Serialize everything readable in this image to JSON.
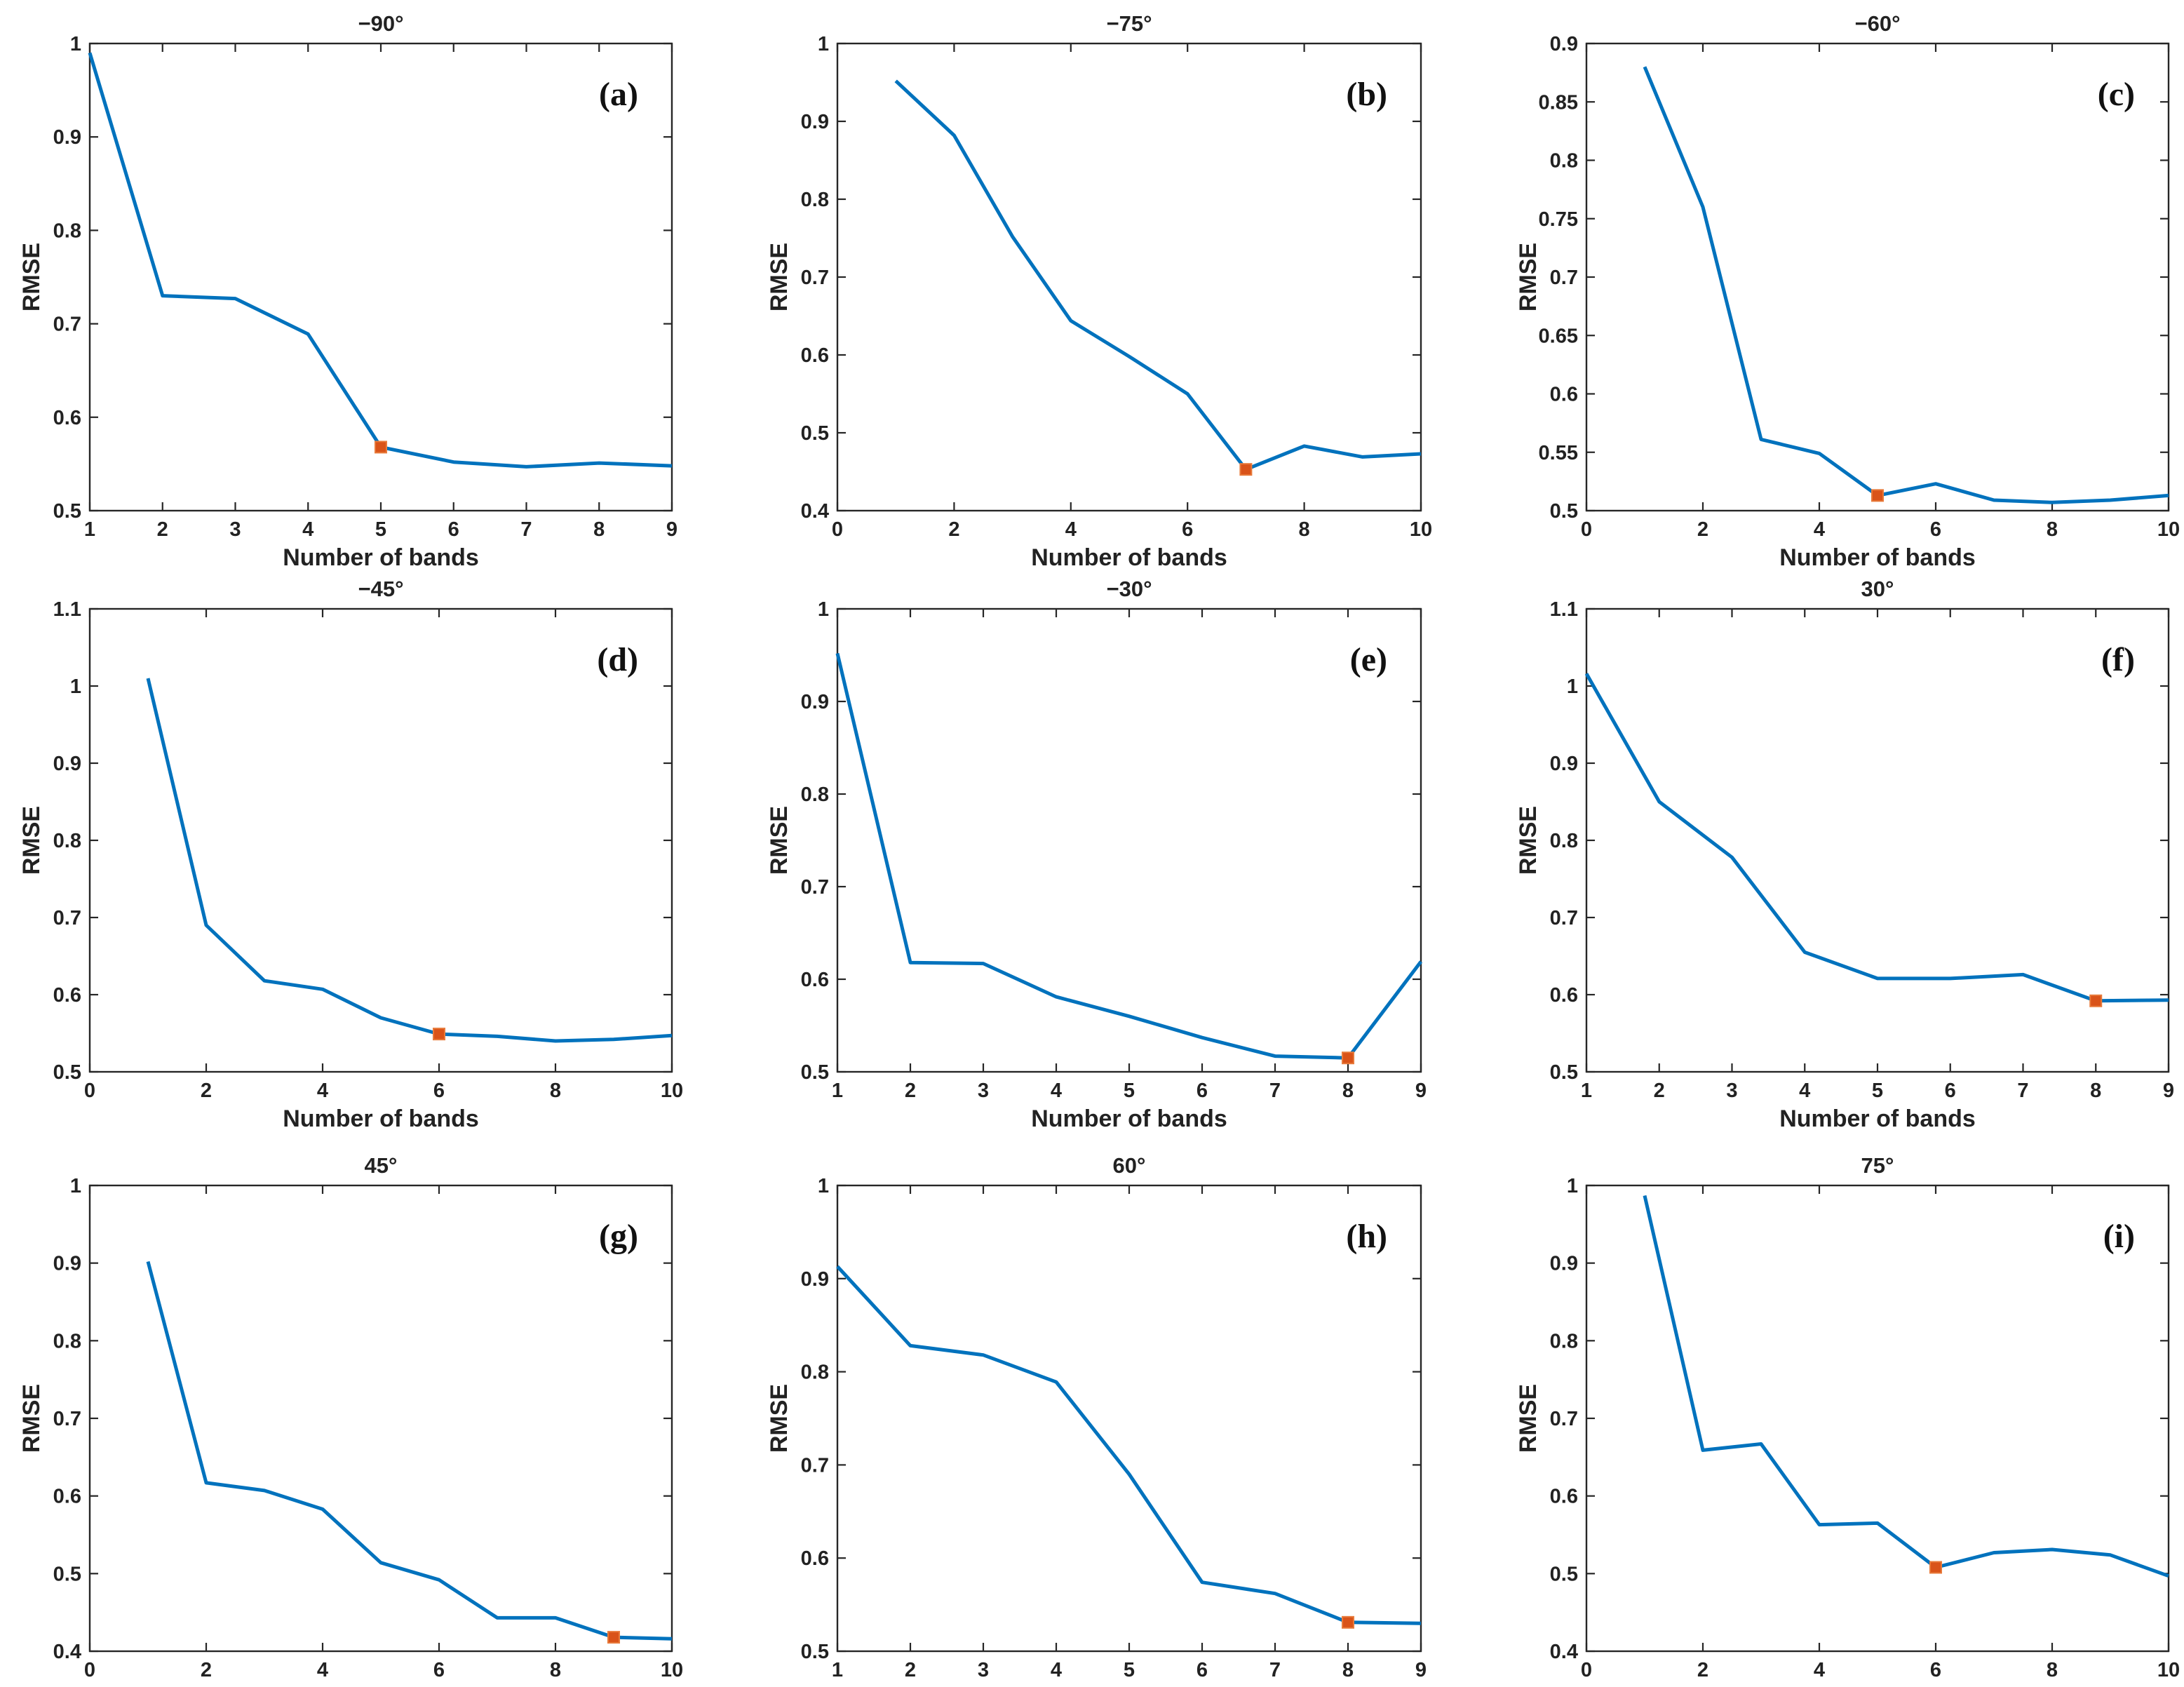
{
  "colors": {
    "line": "#0072bd",
    "marker": "#d95319",
    "axis": "#262626"
  },
  "chart_data": [
    {
      "type": "line",
      "title": "−90°",
      "panel_label": "(a)",
      "xlabel": "Number of bands",
      "ylabel": "RMSE",
      "xlim": [
        1,
        9
      ],
      "ylim": [
        0.5,
        1
      ],
      "xticks": [
        "1",
        "2",
        "3",
        "4",
        "5",
        "6",
        "7",
        "8",
        "9"
      ],
      "yticks": [
        "0.5",
        "0.6",
        "0.7",
        "0.8",
        "0.9",
        "1"
      ],
      "series": [
        {
          "x": [
            1,
            2,
            3,
            4,
            5,
            6,
            7,
            8,
            9
          ],
          "values": [
            0.99,
            0.73,
            0.727,
            0.689,
            0.568,
            0.552,
            0.547,
            0.551,
            0.548
          ]
        }
      ],
      "highlight": {
        "x": 5,
        "y": 0.568
      }
    },
    {
      "type": "line",
      "title": "−75°",
      "panel_label": "(b)",
      "xlabel": "Number of bands",
      "ylabel": "RMSE",
      "xlim": [
        0,
        10
      ],
      "ylim": [
        0.4,
        1
      ],
      "xticks": [
        "0",
        "2",
        "4",
        "6",
        "8",
        "10"
      ],
      "yticks": [
        "0.4",
        "0.5",
        "0.6",
        "0.7",
        "0.8",
        "0.9",
        "1"
      ],
      "series": [
        {
          "x": [
            1,
            2,
            3,
            4,
            5,
            6,
            7,
            8,
            9,
            10
          ],
          "values": [
            0.952,
            0.882,
            0.752,
            0.644,
            0.598,
            0.55,
            0.453,
            0.483,
            0.469,
            0.473
          ]
        }
      ],
      "highlight": {
        "x": 7,
        "y": 0.453
      }
    },
    {
      "type": "line",
      "title": "−60°",
      "panel_label": "(c)",
      "xlabel": "Number of bands",
      "ylabel": "RMSE",
      "xlim": [
        0,
        10
      ],
      "ylim": [
        0.5,
        0.9
      ],
      "xticks": [
        "0",
        "2",
        "4",
        "6",
        "8",
        "10"
      ],
      "yticks": [
        "0.5",
        "0.55",
        "0.6",
        "0.65",
        "0.7",
        "0.75",
        "0.8",
        "0.85",
        "0.9"
      ],
      "series": [
        {
          "x": [
            1,
            2,
            3,
            4,
            5,
            6,
            7,
            8,
            9,
            10
          ],
          "values": [
            0.88,
            0.76,
            0.561,
            0.549,
            0.513,
            0.523,
            0.509,
            0.507,
            0.509,
            0.513
          ]
        }
      ],
      "highlight": {
        "x": 5,
        "y": 0.513
      }
    },
    {
      "type": "line",
      "title": "−45°",
      "panel_label": "(d)",
      "xlabel": "Number of bands",
      "ylabel": "RMSE",
      "xlim": [
        0,
        10
      ],
      "ylim": [
        0.5,
        1.1
      ],
      "xticks": [
        "0",
        "2",
        "4",
        "6",
        "8",
        "10"
      ],
      "yticks": [
        "0.5",
        "0.6",
        "0.7",
        "0.8",
        "0.9",
        "1",
        "1.1"
      ],
      "series": [
        {
          "x": [
            1,
            2,
            3,
            4,
            5,
            6,
            7,
            8,
            9,
            10
          ],
          "values": [
            1.01,
            0.69,
            0.618,
            0.607,
            0.57,
            0.549,
            0.546,
            0.54,
            0.542,
            0.547
          ]
        }
      ],
      "highlight": {
        "x": 6,
        "y": 0.549
      }
    },
    {
      "type": "line",
      "title": "−30°",
      "panel_label": "(e)",
      "xlabel": "Number of bands",
      "ylabel": "RMSE",
      "xlim": [
        1,
        9
      ],
      "ylim": [
        0.5,
        1
      ],
      "xticks": [
        "1",
        "2",
        "3",
        "4",
        "5",
        "6",
        "7",
        "8",
        "9"
      ],
      "yticks": [
        "0.5",
        "0.6",
        "0.7",
        "0.8",
        "0.9",
        "1"
      ],
      "series": [
        {
          "x": [
            1,
            2,
            3,
            4,
            5,
            6,
            7,
            8,
            9
          ],
          "values": [
            0.952,
            0.618,
            0.617,
            0.581,
            0.56,
            0.537,
            0.517,
            0.515,
            0.619
          ]
        }
      ],
      "highlight": {
        "x": 8,
        "y": 0.515
      }
    },
    {
      "type": "line",
      "title": "30°",
      "panel_label": "(f)",
      "xlabel": "Number of bands",
      "ylabel": "RMSE",
      "xlim": [
        1,
        9
      ],
      "ylim": [
        0.5,
        1.1
      ],
      "xticks": [
        "1",
        "2",
        "3",
        "4",
        "5",
        "6",
        "7",
        "8",
        "9"
      ],
      "yticks": [
        "0.5",
        "0.6",
        "0.7",
        "0.8",
        "0.9",
        "1",
        "1.1"
      ],
      "series": [
        {
          "x": [
            1,
            2,
            3,
            4,
            5,
            6,
            7,
            8,
            9
          ],
          "values": [
            1.016,
            0.85,
            0.778,
            0.655,
            0.621,
            0.621,
            0.626,
            0.592,
            0.593
          ]
        }
      ],
      "highlight": {
        "x": 8,
        "y": 0.592
      }
    },
    {
      "type": "line",
      "title": "45°",
      "panel_label": "(g)",
      "xlabel": "",
      "ylabel": "RMSE",
      "xlim": [
        0,
        10
      ],
      "ylim": [
        0.4,
        1
      ],
      "xticks": [
        "0",
        "2",
        "4",
        "6",
        "8",
        "10"
      ],
      "yticks": [
        "0.4",
        "0.5",
        "0.6",
        "0.7",
        "0.8",
        "0.9",
        "1"
      ],
      "series": [
        {
          "x": [
            1,
            2,
            3,
            4,
            5,
            6,
            7,
            8,
            9,
            10
          ],
          "values": [
            0.902,
            0.617,
            0.607,
            0.583,
            0.514,
            0.492,
            0.443,
            0.443,
            0.418,
            0.416
          ]
        }
      ],
      "highlight": {
        "x": 9,
        "y": 0.418
      }
    },
    {
      "type": "line",
      "title": "60°",
      "panel_label": "(h)",
      "xlabel": "",
      "ylabel": "RMSE",
      "xlim": [
        1,
        9
      ],
      "ylim": [
        0.5,
        1
      ],
      "xticks": [
        "1",
        "2",
        "3",
        "4",
        "5",
        "6",
        "7",
        "8",
        "9"
      ],
      "yticks": [
        "0.5",
        "0.6",
        "0.7",
        "0.8",
        "0.9",
        "1"
      ],
      "series": [
        {
          "x": [
            1,
            2,
            3,
            4,
            5,
            6,
            7,
            8,
            9
          ],
          "values": [
            0.913,
            0.828,
            0.818,
            0.789,
            0.69,
            0.574,
            0.562,
            0.531,
            0.53
          ]
        }
      ],
      "highlight": {
        "x": 8,
        "y": 0.531
      }
    },
    {
      "type": "line",
      "title": "75°",
      "panel_label": "(i)",
      "xlabel": "",
      "ylabel": "RMSE",
      "xlim": [
        0,
        10
      ],
      "ylim": [
        0.4,
        1
      ],
      "xticks": [
        "0",
        "2",
        "4",
        "6",
        "8",
        "10"
      ],
      "yticks": [
        "0.4",
        "0.5",
        "0.6",
        "0.7",
        "0.8",
        "0.9",
        "1"
      ],
      "series": [
        {
          "x": [
            1,
            2,
            3,
            4,
            5,
            6,
            7,
            8,
            9,
            10
          ],
          "values": [
            0.987,
            0.659,
            0.667,
            0.563,
            0.565,
            0.508,
            0.527,
            0.531,
            0.524,
            0.497
          ]
        }
      ],
      "highlight": {
        "x": 6,
        "y": 0.508
      }
    }
  ]
}
